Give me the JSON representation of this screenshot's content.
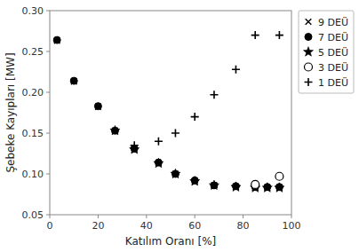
{
  "chart_data": {
    "type": "scatter",
    "xlabel": "Katılım Oranı [%]",
    "ylabel": "Şebeke Kayıpları [MW]",
    "xlim": [
      0,
      100
    ],
    "ylim": [
      0.05,
      0.3
    ],
    "xticks": [
      0,
      20,
      40,
      60,
      80,
      100
    ],
    "yticks": [
      0.05,
      {
        "value": 0.1,
        "label": "0.10"
      },
      0.15,
      {
        "value": 0.2,
        "label": "0.20"
      },
      0.25,
      {
        "value": 0.3,
        "label": "0.30"
      }
    ],
    "grid": false,
    "legend": "upper right",
    "series": [
      {
        "name": "9 DEÜ",
        "color": "black",
        "marker": "x",
        "x": [
          3,
          10,
          20,
          27,
          35,
          45,
          52,
          60,
          68,
          77,
          85,
          90,
          95
        ],
        "values": [
          0.263,
          0.213,
          0.182,
          0.153,
          0.13,
          0.113,
          0.1,
          0.091,
          0.086,
          0.084,
          0.083,
          0.083,
          0.083
        ]
      },
      {
        "name": "7 DEÜ",
        "color": "black",
        "marker": "circle",
        "x": [
          3,
          10,
          20,
          27,
          35,
          45,
          52,
          60,
          68,
          77,
          85,
          90,
          95
        ],
        "values": [
          0.264,
          0.214,
          0.183,
          0.153,
          0.131,
          0.114,
          0.1,
          0.092,
          0.086,
          0.085,
          0.084,
          0.084,
          0.084
        ]
      },
      {
        "name": "5 DEÜ",
        "color": "black",
        "marker": "star",
        "x": [
          27,
          35,
          45,
          52,
          60,
          68,
          77,
          85,
          90,
          95
        ],
        "values": [
          0.153,
          0.13,
          0.113,
          0.1,
          0.091,
          0.086,
          0.084,
          0.083,
          0.083,
          0.083
        ]
      },
      {
        "name": "3 DEÜ",
        "color": "black",
        "marker": "circle-open",
        "x": [
          85,
          95
        ],
        "values": [
          0.087,
          0.097
        ]
      },
      {
        "name": "1 DEÜ",
        "color": "black",
        "marker": "plus",
        "x": [
          35,
          45,
          52,
          60,
          68,
          77,
          85,
          95
        ],
        "values": [
          0.135,
          0.14,
          0.15,
          0.17,
          0.197,
          0.228,
          0.27,
          0.27
        ]
      }
    ]
  }
}
